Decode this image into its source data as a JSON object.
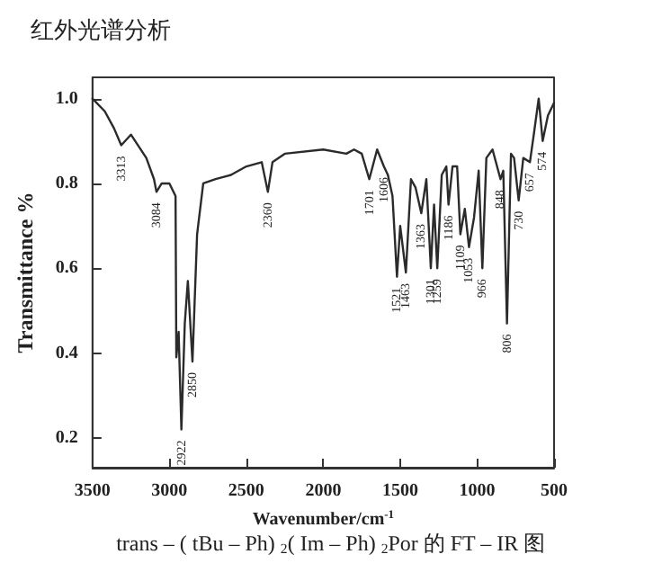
{
  "chart_data": {
    "type": "line",
    "title": "红外光谱分析",
    "xlabel": "Wavenumber/cm$^{-1}$",
    "ylabel": "Transmittance %",
    "series": [
      {
        "color": "#2b2b2b",
        "x": [
          3500,
          3420,
          3360,
          3313,
          3250,
          3150,
          3100,
          3084,
          3050,
          3000,
          2960,
          2955,
          2940,
          2922,
          2900,
          2880,
          2850,
          2820,
          2780,
          2700,
          2600,
          2500,
          2400,
          2360,
          2330,
          2250,
          2000,
          1850,
          1800,
          1750,
          1701,
          1650,
          1606,
          1580,
          1550,
          1521,
          1500,
          1463,
          1430,
          1400,
          1363,
          1330,
          1301,
          1280,
          1259,
          1230,
          1200,
          1186,
          1160,
          1130,
          1109,
          1080,
          1053,
          1020,
          990,
          966,
          940,
          900,
          848,
          830,
          806,
          780,
          760,
          730,
          700,
          657,
          630,
          600,
          574,
          540,
          500
        ],
        "values": [
          1.0,
          0.97,
          0.93,
          0.89,
          0.915,
          0.86,
          0.81,
          0.78,
          0.8,
          0.8,
          0.77,
          0.39,
          0.45,
          0.22,
          0.47,
          0.57,
          0.38,
          0.68,
          0.8,
          0.81,
          0.82,
          0.84,
          0.85,
          0.78,
          0.85,
          0.87,
          0.88,
          0.87,
          0.88,
          0.87,
          0.81,
          0.88,
          0.84,
          0.82,
          0.77,
          0.58,
          0.7,
          0.59,
          0.81,
          0.79,
          0.73,
          0.81,
          0.6,
          0.75,
          0.6,
          0.82,
          0.84,
          0.75,
          0.84,
          0.84,
          0.68,
          0.74,
          0.65,
          0.72,
          0.83,
          0.6,
          0.86,
          0.88,
          0.81,
          0.83,
          0.47,
          0.87,
          0.86,
          0.76,
          0.86,
          0.85,
          0.92,
          1.0,
          0.9,
          0.96,
          0.99
        ]
      }
    ],
    "xlim": [
      3500,
      500
    ],
    "xticks": [
      3500,
      3000,
      2500,
      2000,
      1500,
      1000,
      500
    ],
    "ylim": [
      0.13,
      1.05
    ],
    "yticks": [
      0.2,
      0.4,
      0.6,
      0.8,
      {
        "value": 1,
        "label": "1.0"
      }
    ],
    "grid": false,
    "marker": "none",
    "line_style": "solid",
    "annotations": [
      {
        "text": "3313",
        "x": 3313,
        "y": 0.89
      },
      {
        "text": "3084",
        "x": 3084,
        "y": 0.78
      },
      {
        "text": "2922",
        "x": 2922,
        "y": 0.22
      },
      {
        "text": "2850",
        "x": 2850,
        "y": 0.38
      },
      {
        "text": "2360",
        "x": 2360,
        "y": 0.78
      },
      {
        "text": "1701",
        "x": 1701,
        "y": 0.81
      },
      {
        "text": "1606",
        "x": 1606,
        "y": 0.84
      },
      {
        "text": "1521",
        "x": 1521,
        "y": 0.58
      },
      {
        "text": "1463",
        "x": 1463,
        "y": 0.59
      },
      {
        "text": "1363",
        "x": 1363,
        "y": 0.73
      },
      {
        "text": "1301",
        "x": 1301,
        "y": 0.6
      },
      {
        "text": "1259",
        "x": 1259,
        "y": 0.6
      },
      {
        "text": "1186",
        "x": 1186,
        "y": 0.75
      },
      {
        "text": "1109",
        "x": 1109,
        "y": 0.68
      },
      {
        "text": "1053",
        "x": 1053,
        "y": 0.65
      },
      {
        "text": "966",
        "x": 966,
        "y": 0.6
      },
      {
        "text": "848",
        "x": 848,
        "y": 0.81
      },
      {
        "text": "806",
        "x": 806,
        "y": 0.47
      },
      {
        "text": "730",
        "x": 730,
        "y": 0.76
      },
      {
        "text": "657",
        "x": 657,
        "y": 0.85
      },
      {
        "text": "574",
        "x": 574,
        "y": 0.9
      },
      "trans – ( tBu – Ph) $_{2}$( Im – Ph) $_{2}$Por 的 FT – IR 图"
    ]
  }
}
